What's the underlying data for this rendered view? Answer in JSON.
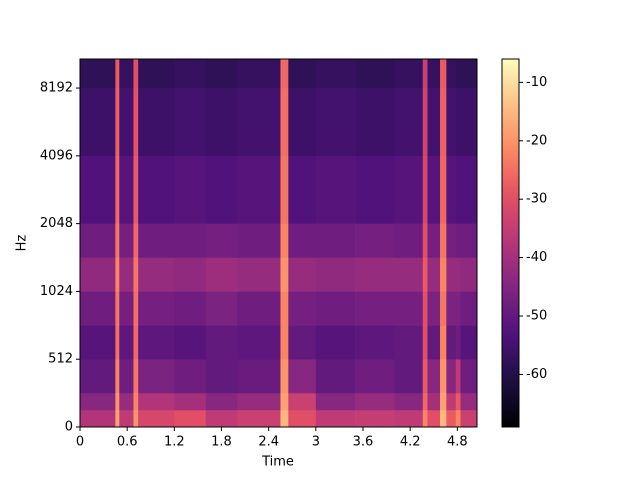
{
  "chart_data": {
    "type": "spectrogram",
    "xlabel": "Time",
    "ylabel": "Hz",
    "x_edges": [
      0,
      0.45,
      0.5,
      0.68,
      0.74,
      1.2,
      1.6,
      2.0,
      2.55,
      2.65,
      3.0,
      3.5,
      4.0,
      4.36,
      4.42,
      4.58,
      4.66,
      4.78,
      4.84,
      5.05
    ],
    "y_edges": [
      0,
      128,
      256,
      512,
      724,
      1024,
      1448,
      2048,
      4096,
      8192,
      11025
    ],
    "values": [
      [
        -38,
        -18,
        -36,
        -20,
        -32,
        -30,
        -36,
        -34,
        -15,
        -30,
        -36,
        -35,
        -36,
        -22,
        -30,
        -15,
        -28,
        -22,
        -34
      ],
      [
        -44,
        -20,
        -42,
        -22,
        -38,
        -40,
        -44,
        -42,
        -18,
        -34,
        -44,
        -42,
        -44,
        -26,
        -40,
        -18,
        -36,
        -28,
        -42
      ],
      [
        -50,
        -22,
        -48,
        -24,
        -46,
        -48,
        -50,
        -49,
        -20,
        -44,
        -50,
        -48,
        -50,
        -28,
        -44,
        -20,
        -44,
        -36,
        -48
      ],
      [
        -52,
        -25,
        -51,
        -26,
        -51,
        -52,
        -50,
        -51,
        -22,
        -50,
        -52,
        -51,
        -50,
        -30,
        -50,
        -22,
        -50,
        -48,
        -52
      ],
      [
        -48,
        -24,
        -47,
        -25,
        -47,
        -48,
        -46,
        -48,
        -22,
        -47,
        -48,
        -47,
        -47,
        -30,
        -46,
        -24,
        -46,
        -46,
        -48
      ],
      [
        -43,
        -22,
        -42,
        -24,
        -42,
        -43,
        -41,
        -42,
        -20,
        -42,
        -43,
        -42,
        -42,
        -28,
        -42,
        -22,
        -42,
        -42,
        -43
      ],
      [
        -48,
        -24,
        -47,
        -26,
        -48,
        -48,
        -47,
        -48,
        -22,
        -48,
        -48,
        -47,
        -48,
        -30,
        -47,
        -24,
        -47,
        -48,
        -48
      ],
      [
        -53,
        -26,
        -52,
        -28,
        -53,
        -52,
        -53,
        -52,
        -24,
        -53,
        -52,
        -53,
        -52,
        -32,
        -52,
        -26,
        -52,
        -53,
        -53
      ],
      [
        -56,
        -27,
        -55,
        -29,
        -56,
        -55,
        -56,
        -55,
        -25,
        -56,
        -55,
        -56,
        -55,
        -33,
        -55,
        -27,
        -55,
        -56,
        -56
      ],
      [
        -58,
        -28,
        -57,
        -30,
        -58,
        -57,
        -58,
        -57,
        -26,
        -58,
        -57,
        -58,
        -57,
        -34,
        -57,
        -28,
        -57,
        -58,
        -58
      ]
    ],
    "xlim": [
      0,
      5.05
    ],
    "xticks": [
      0,
      0.6,
      1.2,
      1.8,
      2.4,
      3,
      3.6,
      4.2,
      4.8
    ],
    "ylim": [
      0,
      11025
    ],
    "yscale": "symlog",
    "linthresh": 512,
    "yticks": [
      0,
      512,
      1024,
      2048,
      4096,
      8192
    ],
    "colormap": "magma",
    "clim": [
      -69,
      -6
    ],
    "cticks": [
      -60,
      -50,
      -40,
      -30,
      -20,
      -10
    ]
  }
}
